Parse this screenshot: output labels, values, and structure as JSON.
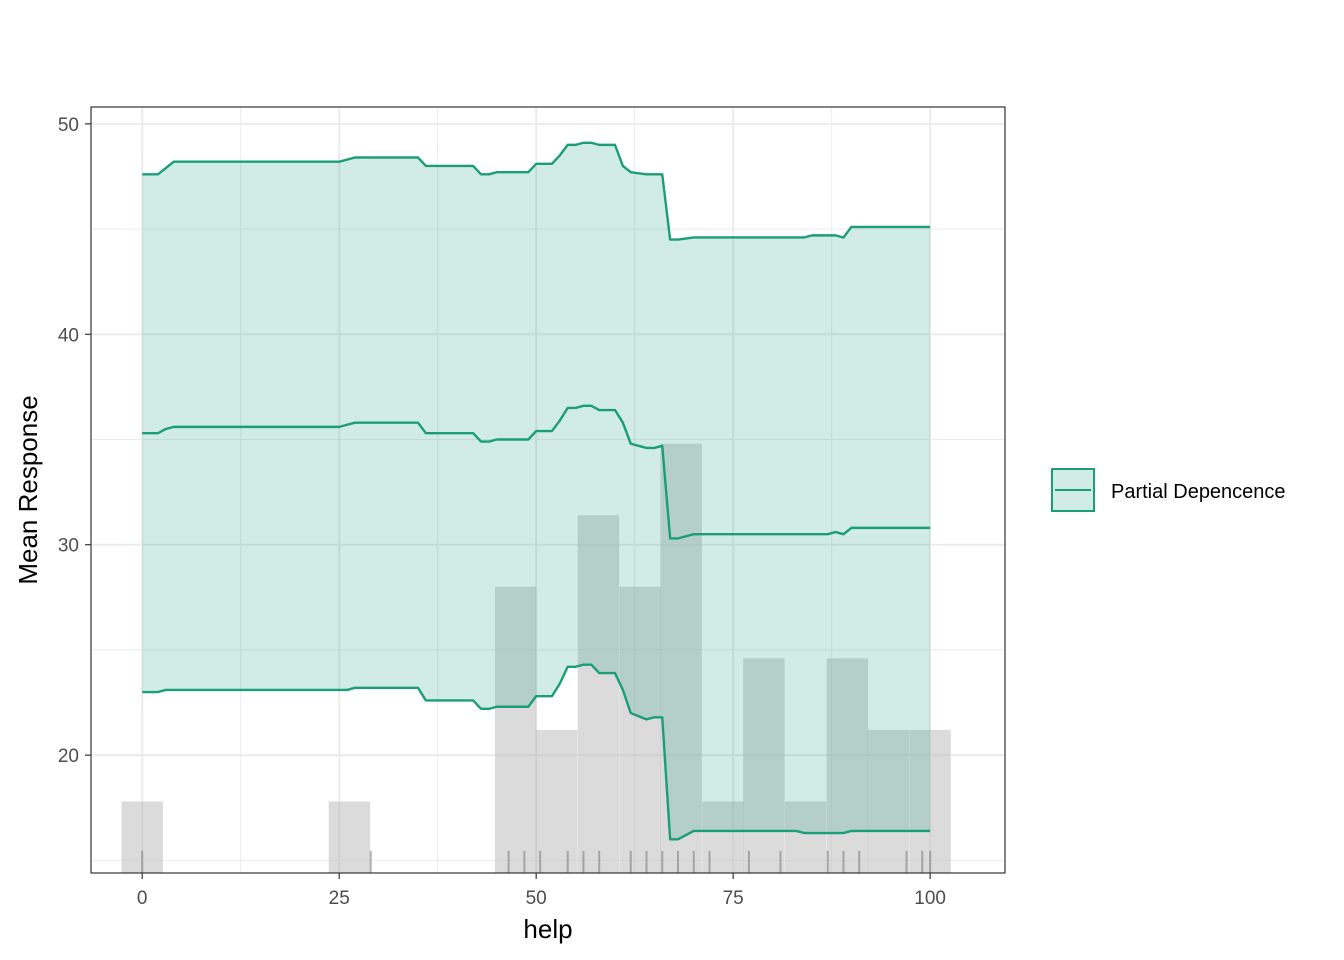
{
  "chart_data": {
    "type": "line",
    "xlabel": "help",
    "ylabel": "Mean Response",
    "xlim": [
      -6.5,
      109.5
    ],
    "ylim": [
      14.4,
      50.8
    ],
    "x_ticks": [
      0,
      25,
      50,
      75,
      100
    ],
    "x_tick_labels": [
      "0",
      "25",
      "50",
      "75",
      "100"
    ],
    "y_ticks": [
      20,
      30,
      40,
      50
    ],
    "y_tick_labels": [
      "20",
      "30",
      "40",
      "50"
    ],
    "grid": true,
    "legend": {
      "position": "right",
      "entries": [
        "Partial Depencence"
      ]
    },
    "colors": {
      "line": "#1b9e77",
      "band": "#d2ebe3",
      "histogram": "#bdbdbd",
      "rug": "#7f7f7f",
      "grid": "#ebebeb",
      "panel_border": "#333333"
    },
    "histogram": {
      "bin_width": 5.26,
      "bins": [
        {
          "center": 0.0,
          "top": 17.8
        },
        {
          "center": 26.3,
          "top": 17.8
        },
        {
          "center": 47.4,
          "top": 28.0
        },
        {
          "center": 52.6,
          "top": 21.2
        },
        {
          "center": 57.9,
          "top": 31.4
        },
        {
          "center": 63.2,
          "top": 28.0
        },
        {
          "center": 68.4,
          "top": 34.8
        },
        {
          "center": 73.7,
          "top": 17.8
        },
        {
          "center": 78.9,
          "top": 24.6
        },
        {
          "center": 84.2,
          "top": 17.8
        },
        {
          "center": 89.5,
          "top": 24.6
        },
        {
          "center": 94.7,
          "top": 21.2
        },
        {
          "center": 100.0,
          "top": 21.2
        }
      ]
    },
    "rug_x": [
      0,
      29,
      46.5,
      48.5,
      50.5,
      54,
      56,
      58,
      62,
      64,
      66,
      68,
      70,
      72,
      77,
      81,
      87,
      89,
      91,
      97,
      99,
      100
    ],
    "x": [
      0,
      2,
      3,
      4,
      25,
      26,
      27,
      35,
      36,
      42,
      43,
      44,
      45,
      48,
      49,
      50,
      52,
      53,
      54,
      55,
      56,
      57,
      58,
      59,
      60,
      61,
      62,
      64,
      65,
      66,
      67,
      68,
      70,
      71,
      73,
      75,
      81,
      82,
      83,
      84,
      85,
      87,
      88,
      89,
      90,
      100
    ],
    "series": [
      {
        "values": [
          47.6,
          47.6,
          47.9,
          48.2,
          48.2,
          48.3,
          48.4,
          48.4,
          48.0,
          48.0,
          47.6,
          47.6,
          47.7,
          47.7,
          47.7,
          48.1,
          48.1,
          48.5,
          49.0,
          49.0,
          49.1,
          49.1,
          49.0,
          49.0,
          49.0,
          48.0,
          47.7,
          47.6,
          47.6,
          47.6,
          44.5,
          44.5,
          44.6,
          44.6,
          44.6,
          44.6,
          44.6,
          44.6,
          44.6,
          44.6,
          44.7,
          44.7,
          44.7,
          44.6,
          45.1,
          45.1
        ]
      },
      {
        "values": [
          35.3,
          35.3,
          35.5,
          35.6,
          35.6,
          35.7,
          35.8,
          35.8,
          35.3,
          35.3,
          34.9,
          34.9,
          35.0,
          35.0,
          35.0,
          35.4,
          35.4,
          35.9,
          36.5,
          36.5,
          36.6,
          36.6,
          36.4,
          36.4,
          36.4,
          35.8,
          34.8,
          34.6,
          34.6,
          34.7,
          30.3,
          30.3,
          30.5,
          30.5,
          30.5,
          30.5,
          30.5,
          30.5,
          30.5,
          30.5,
          30.5,
          30.5,
          30.6,
          30.5,
          30.8,
          30.8
        ]
      },
      {
        "values": [
          23.0,
          23.0,
          23.1,
          23.1,
          23.1,
          23.1,
          23.2,
          23.2,
          22.6,
          22.6,
          22.2,
          22.2,
          22.3,
          22.3,
          22.3,
          22.8,
          22.8,
          23.4,
          24.2,
          24.2,
          24.3,
          24.3,
          23.9,
          23.9,
          23.9,
          23.1,
          22.0,
          21.7,
          21.8,
          21.8,
          16.0,
          16.0,
          16.4,
          16.4,
          16.4,
          16.4,
          16.4,
          16.4,
          16.4,
          16.3,
          16.3,
          16.3,
          16.3,
          16.3,
          16.4,
          16.4
        ]
      }
    ]
  }
}
